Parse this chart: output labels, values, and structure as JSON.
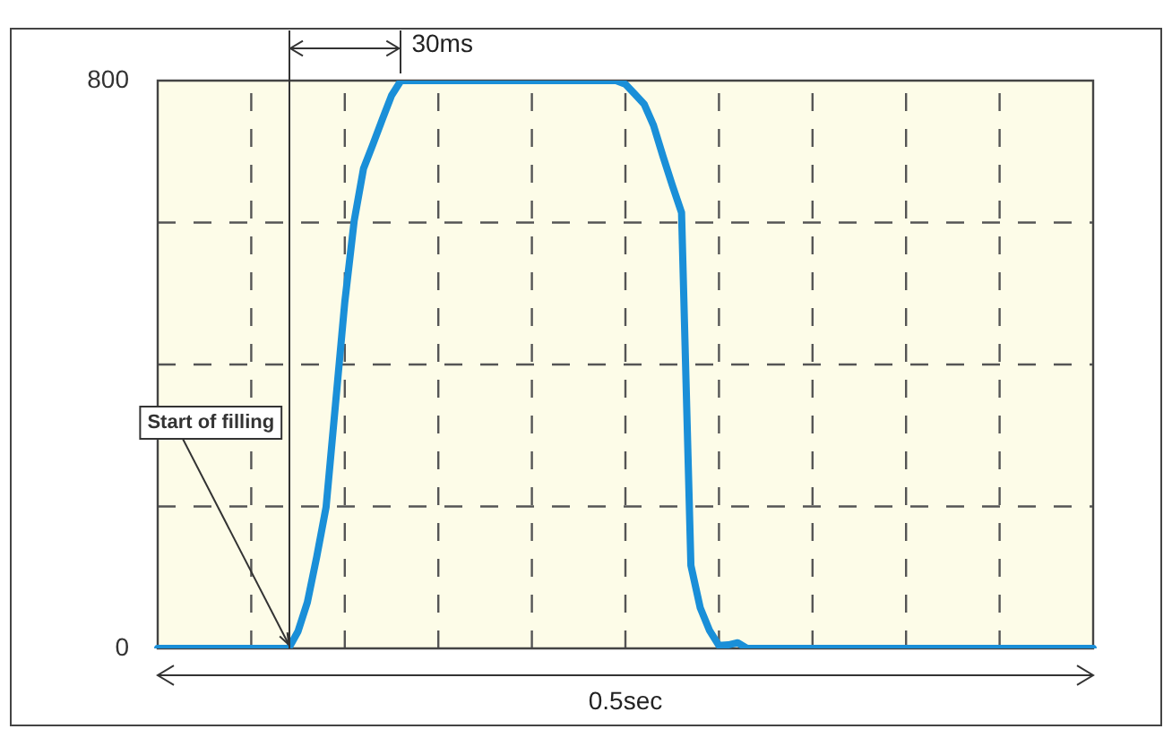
{
  "chart_data": {
    "type": "line",
    "categories": [
      null,
      null,
      null,
      null,
      null,
      null,
      null,
      null,
      null,
      null,
      null,
      null,
      null,
      null,
      null,
      null,
      null,
      null,
      null,
      null,
      null,
      null,
      null,
      null,
      null,
      null,
      null,
      null,
      null,
      null,
      null,
      null,
      null,
      null,
      null,
      null,
      null,
      null,
      null,
      null,
      null,
      null,
      null,
      null,
      null,
      null,
      null,
      null,
      null,
      null,
      null,
      null,
      null,
      null,
      null,
      null,
      null,
      null,
      null,
      null,
      null,
      null,
      null,
      null,
      null,
      null,
      null,
      null,
      null,
      null,
      null,
      null,
      null,
      null,
      null,
      null,
      null,
      null,
      null,
      null,
      null,
      null,
      null,
      null,
      null,
      null,
      null,
      null,
      null,
      null,
      null,
      null,
      null,
      null,
      null,
      null,
      null,
      null,
      null,
      null,
      null
    ],
    "series": [
      {
        "color": "#1a8fd8",
        "values": [
          0,
          0,
          0,
          0,
          0,
          0,
          0,
          0,
          0,
          0,
          0,
          0,
          0,
          0,
          0,
          24,
          65,
          129,
          199,
          343,
          488,
          602,
          676,
          710,
          745,
          779,
          800,
          800,
          800,
          800,
          800,
          800,
          800,
          800,
          800,
          800,
          800,
          800,
          800,
          800,
          800,
          800,
          800,
          800,
          800,
          800,
          800,
          800,
          800,
          800,
          795,
          781,
          767,
          737,
          694,
          653,
          614,
          117,
          57,
          25,
          4,
          5,
          8,
          0,
          0,
          0,
          0,
          0,
          0,
          0,
          0,
          0,
          0,
          0,
          0,
          0,
          0,
          0,
          0,
          0,
          0,
          0,
          0,
          0,
          0,
          0,
          0,
          0,
          0,
          0,
          0,
          0,
          0,
          0,
          0,
          0,
          0,
          0,
          0,
          0,
          0
        ]
      }
    ],
    "ylim": [
      0,
      800
    ],
    "yticks": [
      0,
      {
        "value": 200,
        "label": null
      },
      {
        "value": 400,
        "label": null
      },
      {
        "value": 600,
        "label": null
      },
      800
    ],
    "tick_labels": "y",
    "grid": true,
    "line_style": "solid",
    "marker": "none",
    "legend": false,
    "annotations": [
      "Start of filling",
      "30ms",
      "0.5sec"
    ]
  }
}
